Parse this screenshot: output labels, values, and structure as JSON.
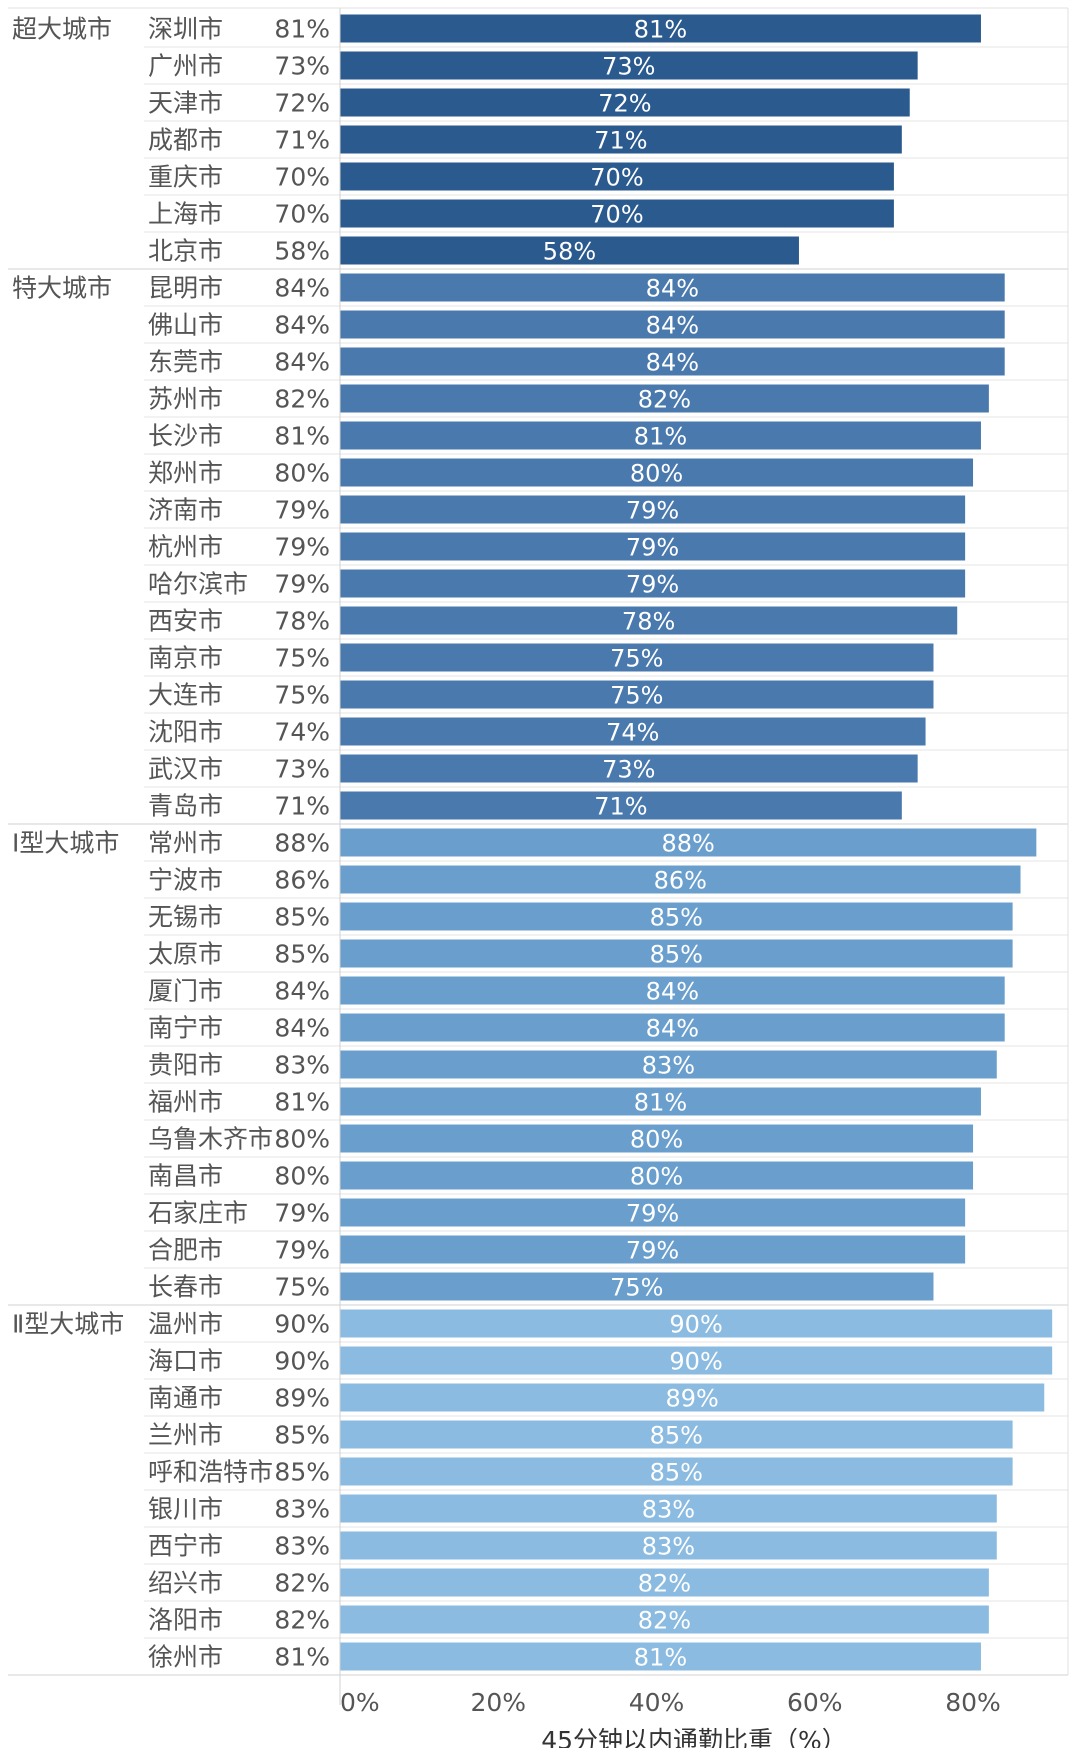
{
  "chart_data": {
    "type": "bar",
    "orientation": "horizontal",
    "xlabel": "45分钟以内通勤比重（%）",
    "xlim": [
      0,
      92
    ],
    "xticks": [
      "0%",
      "20%",
      "40%",
      "60%",
      "80%"
    ],
    "xtick_values": [
      0,
      20,
      40,
      60,
      80
    ],
    "grid": false,
    "groups": [
      {
        "name": "超大城市",
        "color": "#2b5a8e",
        "cities": [
          "深圳市",
          "广州市",
          "天津市",
          "成都市",
          "重庆市",
          "上海市",
          "北京市"
        ],
        "values": [
          81,
          73,
          72,
          71,
          70,
          70,
          58
        ],
        "labels": [
          "81%",
          "73%",
          "72%",
          "71%",
          "70%",
          "70%",
          "58%"
        ]
      },
      {
        "name": "特大城市",
        "color": "#4a79ad",
        "cities": [
          "昆明市",
          "佛山市",
          "东莞市",
          "苏州市",
          "长沙市",
          "郑州市",
          "济南市",
          "杭州市",
          "哈尔滨市",
          "西安市",
          "南京市",
          "大连市",
          "沈阳市",
          "武汉市",
          "青岛市"
        ],
        "values": [
          84,
          84,
          84,
          82,
          81,
          80,
          79,
          79,
          79,
          78,
          75,
          75,
          74,
          73,
          71
        ],
        "labels": [
          "84%",
          "84%",
          "84%",
          "82%",
          "81%",
          "80%",
          "79%",
          "79%",
          "79%",
          "78%",
          "75%",
          "75%",
          "74%",
          "73%",
          "71%"
        ]
      },
      {
        "name": "Ⅰ型大城市",
        "color": "#6a9fcd",
        "cities": [
          "常州市",
          "宁波市",
          "无锡市",
          "太原市",
          "厦门市",
          "南宁市",
          "贵阳市",
          "福州市",
          "乌鲁木齐市",
          "南昌市",
          "石家庄市",
          "合肥市",
          "长春市"
        ],
        "values": [
          88,
          86,
          85,
          85,
          84,
          84,
          83,
          81,
          80,
          80,
          79,
          79,
          75
        ],
        "labels": [
          "88%",
          "86%",
          "85%",
          "85%",
          "84%",
          "84%",
          "83%",
          "81%",
          "80%",
          "80%",
          "79%",
          "79%",
          "75%"
        ]
      },
      {
        "name": "Ⅱ型大城市",
        "color": "#8bbbe0",
        "cities": [
          "温州市",
          "海口市",
          "南通市",
          "兰州市",
          "呼和浩特市",
          "银川市",
          "西宁市",
          "绍兴市",
          "洛阳市",
          "徐州市"
        ],
        "values": [
          90,
          90,
          89,
          85,
          85,
          83,
          83,
          82,
          82,
          81
        ],
        "labels": [
          "90%",
          "90%",
          "89%",
          "85%",
          "85%",
          "83%",
          "83%",
          "82%",
          "82%",
          "81%"
        ]
      }
    ]
  }
}
